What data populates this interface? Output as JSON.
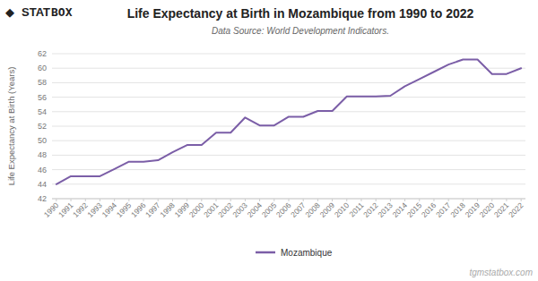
{
  "chart_data": {
    "type": "line",
    "title": "Life Expectancy at Birth in Mozambique from 1990 to 2022",
    "subtitle": "Data Source: World Development Indicators.",
    "y_label": "Life Expectancy at Birth (Years)",
    "annotations": [
      "tgmstatbox.com",
      "◆",
      "STAT",
      "BOX"
    ],
    "x": [
      1990,
      1991,
      1992,
      1993,
      1994,
      1995,
      1996,
      1997,
      1998,
      1999,
      2000,
      2001,
      2002,
      2003,
      2004,
      2005,
      2006,
      2007,
      2008,
      2009,
      2010,
      2011,
      2012,
      2013,
      2014,
      2015,
      2016,
      2017,
      2018,
      2019,
      2020,
      2021,
      2022
    ],
    "series": [
      {
        "name": "Mozambique",
        "color": "#7B5EA7",
        "values": [
          44.0,
          45.1,
          45.1,
          45.1,
          46.1,
          47.1,
          47.1,
          47.3,
          48.4,
          49.4,
          49.4,
          51.1,
          51.1,
          53.2,
          52.1,
          52.1,
          53.3,
          53.3,
          54.1,
          54.1,
          56.1,
          56.1,
          56.1,
          56.2,
          57.5,
          58.5,
          59.5,
          60.5,
          61.2,
          61.2,
          59.2,
          59.2,
          60.0
        ]
      }
    ],
    "xlim": [
      1989.7,
      2022.3
    ],
    "xticks": [
      1990,
      1991,
      1992,
      1993,
      1994,
      1995,
      1996,
      1997,
      1998,
      1999,
      2000,
      2001,
      2002,
      2003,
      2004,
      2005,
      2006,
      2007,
      2008,
      2009,
      2010,
      2011,
      2012,
      2013,
      2014,
      2015,
      2016,
      2017,
      2018,
      2019,
      2020,
      2021,
      2022
    ],
    "ylim": [
      42,
      62
    ],
    "yticks": [
      42,
      44,
      46,
      48,
      50,
      52,
      54,
      56,
      58,
      60,
      62
    ],
    "grid": true,
    "legend": "bottom"
  }
}
